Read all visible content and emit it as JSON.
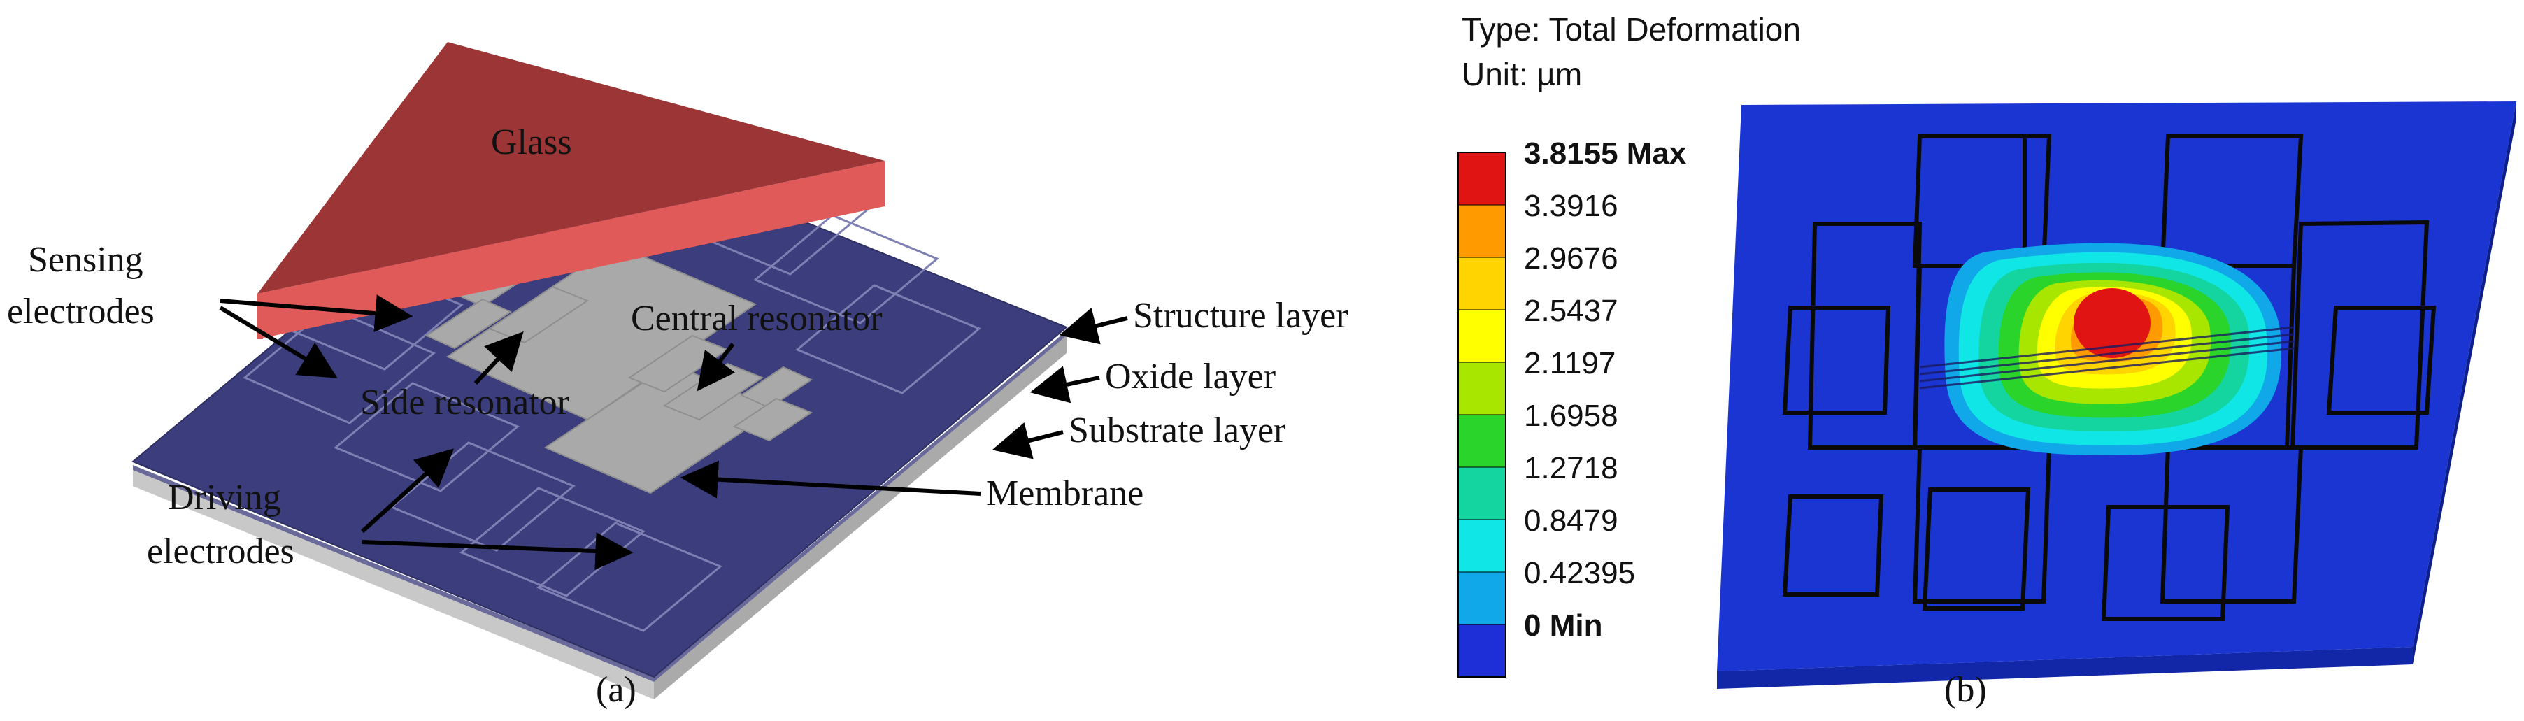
{
  "panel_a": {
    "caption": "(a)",
    "labels": {
      "glass": "Glass",
      "sensing_1": "Sensing",
      "sensing_2": "electrodes",
      "central_resonator": "Central resonator",
      "side_resonator": "Side resonator",
      "structure_layer": "Structure layer",
      "oxide_layer": "Oxide layer",
      "substrate_layer": "Substrate layer",
      "membrane": "Membrane",
      "driving_1": "Driving",
      "driving_2": "electrodes"
    },
    "colors": {
      "glass_top": "#9c3535",
      "glass_edge": "#e05858",
      "structure": "#3b3d7c",
      "electrode_gray": "#a9a9a9",
      "substrate_side": "#c9c9c9"
    }
  },
  "panel_b": {
    "caption": "(b)",
    "type_label": "Type: Total Deformation",
    "unit_label": "Unit: µm",
    "legend": [
      {
        "label": "3.8155 Max",
        "color": "#e11414",
        "bold": true
      },
      {
        "label": "3.3916",
        "color": "#ff9a00",
        "bold": false
      },
      {
        "label": "2.9676",
        "color": "#ffd400",
        "bold": false
      },
      {
        "label": "2.5437",
        "color": "#ffff00",
        "bold": false
      },
      {
        "label": "2.1197",
        "color": "#a8e600",
        "bold": false
      },
      {
        "label": "1.6958",
        "color": "#2bd42b",
        "bold": false
      },
      {
        "label": "1.2718",
        "color": "#14d4a0",
        "bold": false
      },
      {
        "label": "0.8479",
        "color": "#11e6e6",
        "bold": false
      },
      {
        "label": "0.42395",
        "color": "#10a8e8",
        "bold": false
      },
      {
        "label": "0 Min",
        "color": "#1e2fd8",
        "bold": true
      }
    ],
    "colors": {
      "plate": "#1a35d2",
      "plate_edge": "#1227a8",
      "slot": "#0a0a0a"
    }
  }
}
